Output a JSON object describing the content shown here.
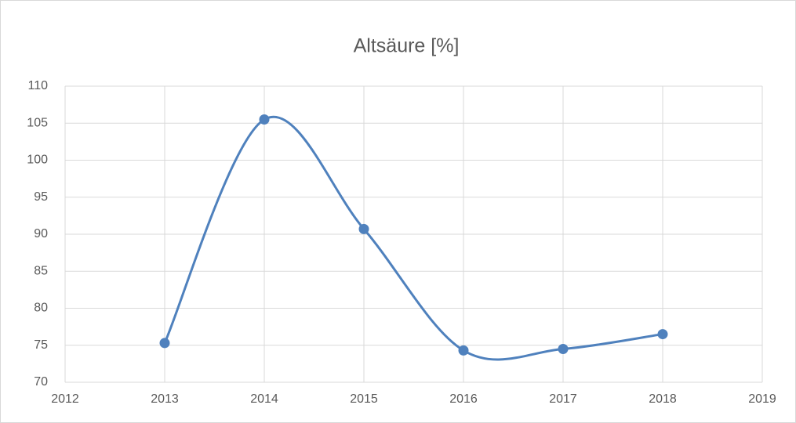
{
  "chart_data": {
    "type": "scatter",
    "title": "Altsäure [%]",
    "series": [
      {
        "color": "#4f81bd",
        "x": [
          2013,
          2014,
          2015,
          2016,
          2017,
          2018
        ],
        "values": [
          75.3,
          105.5,
          90.7,
          74.3,
          74.5,
          76.5
        ]
      }
    ],
    "smooth": true,
    "xlim": [
      2012,
      2019
    ],
    "xticks": [
      2012,
      2013,
      2014,
      2015,
      2016,
      2017,
      2018,
      2019
    ],
    "ylim": [
      70,
      110
    ],
    "yticks": [
      70,
      75,
      80,
      85,
      90,
      95,
      100,
      105,
      110
    ],
    "grid": true
  }
}
